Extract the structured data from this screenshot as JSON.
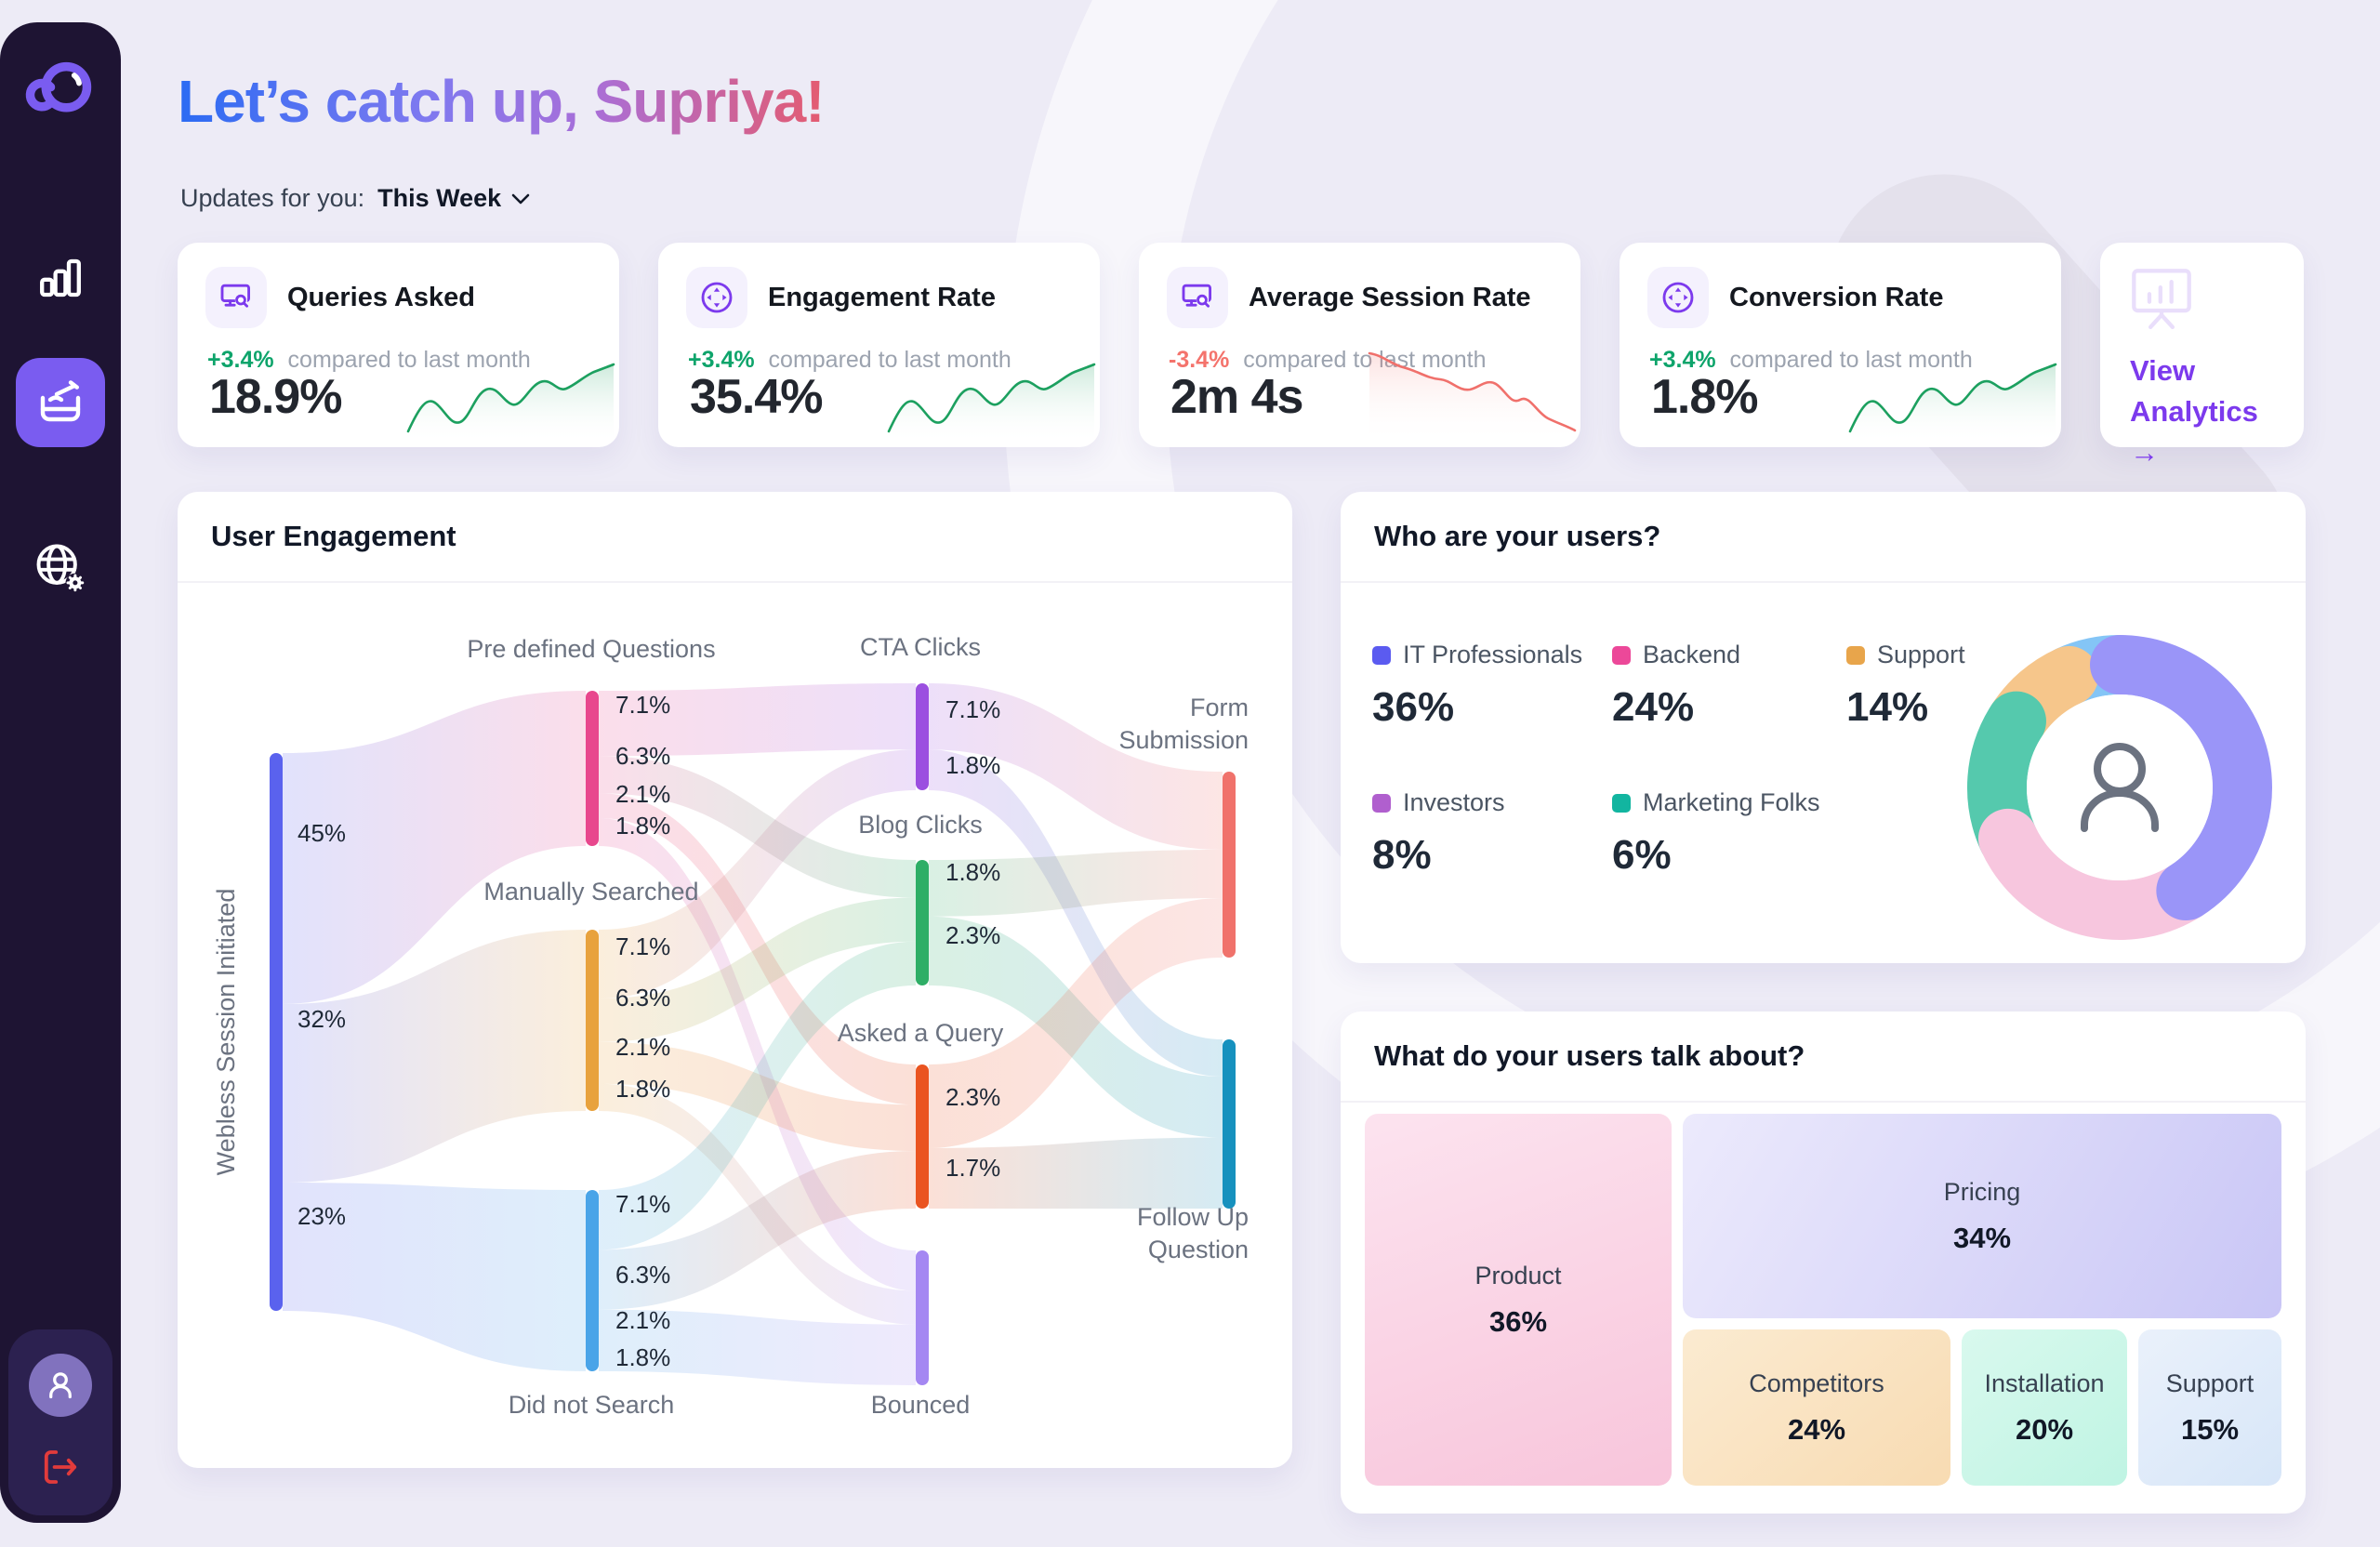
{
  "header": {
    "title": "Let’s catch up, Supriya!",
    "updates_label": "Updates for you:",
    "period": "This Week",
    "period_chevron_icon": "chevron-down-icon"
  },
  "sidebar": {
    "logo_icon": "loop-logo-icon",
    "nav": [
      {
        "icon": "bar-chart-icon",
        "active": false
      },
      {
        "icon": "compose-report-icon",
        "active": true
      },
      {
        "icon": "globe-settings-icon",
        "active": false
      }
    ],
    "avatar_icon": "user-avatar-icon",
    "logout_icon": "logout-icon"
  },
  "stat_cards": [
    {
      "icon": "monitor-search-icon",
      "title": "Queries Asked",
      "delta": "+3.4%",
      "delta_color": "#0EA46B",
      "compare": "compared to last month",
      "value": "18.9%",
      "trend": "up"
    },
    {
      "icon": "target-arrows-icon",
      "title": "Engagement Rate",
      "delta": "+3.4%",
      "delta_color": "#0EA46B",
      "compare": "compared to last month",
      "value": "35.4%",
      "trend": "up"
    },
    {
      "icon": "monitor-search-icon",
      "title": "Average Session Rate",
      "delta": "-3.4%",
      "delta_color": "#F4736C",
      "compare": "compared to last month",
      "value": "2m 4s",
      "trend": "down"
    },
    {
      "icon": "target-arrows-icon",
      "title": "Conversion Rate",
      "delta": "+3.4%",
      "delta_color": "#0EA46B",
      "compare": "compared to last month",
      "value": "1.8%",
      "trend": "up"
    }
  ],
  "view_analytics": {
    "icon": "presentation-chart-icon",
    "label": "View Analytics",
    "arrow": "→"
  },
  "user_engagement": {
    "title": "User Engagement",
    "chart_data": {
      "type": "sankey",
      "nodes": [
        {
          "id": "src",
          "label": "Webless Session Initiated",
          "segments": [
            "45%",
            "32%",
            "23%"
          ],
          "color": "#5A62EE"
        },
        {
          "id": "pre",
          "label": "Pre defined Questions",
          "segments": [
            "7.1%",
            "6.3%",
            "2.1%",
            "1.8%"
          ],
          "color": "#E8478D"
        },
        {
          "id": "man",
          "label": "Manually Searched",
          "segments": [
            "7.1%",
            "6.3%",
            "2.1%",
            "1.8%"
          ],
          "color": "#E8A23D"
        },
        {
          "id": "did",
          "label": "Did not Search",
          "segments": [
            "7.1%",
            "6.3%",
            "2.1%",
            "1.8%"
          ],
          "color": "#4AA4E8"
        },
        {
          "id": "cta",
          "label": "CTA Clicks",
          "segments": [
            "7.1%",
            "1.8%"
          ],
          "color": "#9B4FE0"
        },
        {
          "id": "blog",
          "label": "Blog Clicks",
          "segments": [
            "1.8%",
            "2.3%"
          ],
          "color": "#2EAE66"
        },
        {
          "id": "ask",
          "label": "Asked a Query",
          "segments": [
            "2.3%",
            "1.7%"
          ],
          "color": "#EA5420"
        },
        {
          "id": "bounce",
          "label": "Bounced",
          "segments": [],
          "color": "#A487F2"
        },
        {
          "id": "form",
          "label": "Form Submission",
          "segments": [],
          "color": "#F0726B"
        },
        {
          "id": "follow",
          "label": "Follow Up Question",
          "segments": [],
          "color": "#1691BE"
        }
      ],
      "links": [
        {
          "source": "src",
          "target": "pre",
          "value": 45
        },
        {
          "source": "src",
          "target": "man",
          "value": 32
        },
        {
          "source": "src",
          "target": "did",
          "value": 23
        },
        {
          "source": "pre",
          "target": "cta"
        },
        {
          "source": "pre",
          "target": "blog"
        },
        {
          "source": "pre",
          "target": "ask"
        },
        {
          "source": "pre",
          "target": "bounce"
        },
        {
          "source": "man",
          "target": "cta"
        },
        {
          "source": "man",
          "target": "blog"
        },
        {
          "source": "man",
          "target": "ask"
        },
        {
          "source": "man",
          "target": "bounce"
        },
        {
          "source": "did",
          "target": "blog"
        },
        {
          "source": "did",
          "target": "ask"
        },
        {
          "source": "did",
          "target": "bounce"
        },
        {
          "source": "cta",
          "target": "form"
        },
        {
          "source": "cta",
          "target": "follow"
        },
        {
          "source": "blog",
          "target": "form"
        },
        {
          "source": "blog",
          "target": "follow"
        },
        {
          "source": "ask",
          "target": "form"
        },
        {
          "source": "ask",
          "target": "follow"
        }
      ]
    }
  },
  "users_card": {
    "title": "Who are your users?",
    "legend": [
      {
        "label": "IT Professionals",
        "value": "36%",
        "color": "#5B5BF0"
      },
      {
        "label": "Backend",
        "value": "24%",
        "color": "#EC4899"
      },
      {
        "label": "Support",
        "value": "14%",
        "color": "#E8A54B"
      },
      {
        "label": "Investors",
        "value": "8%",
        "color": "#B05FCE"
      },
      {
        "label": "Marketing Folks",
        "value": "6%",
        "color": "#12B5A0"
      }
    ],
    "chart_data": {
      "type": "pie",
      "center_icon": "person-icon",
      "segments": [
        {
          "value": 36,
          "color": "#9A95F8"
        },
        {
          "value": 24,
          "color": "#F7C6DE"
        },
        {
          "value": 14,
          "color": "#55C9AD"
        },
        {
          "value": 8,
          "color": "#F6C68B"
        },
        {
          "value": 6,
          "color": "#84C5F6"
        }
      ]
    }
  },
  "topics_card": {
    "title": "What do your users talk about?",
    "chart_data": {
      "type": "treemap",
      "blocks": [
        {
          "label": "Product",
          "value": "36%"
        },
        {
          "label": "Pricing",
          "value": "34%"
        },
        {
          "label": "Competitors",
          "value": "24%"
        },
        {
          "label": "Installation",
          "value": "20%"
        },
        {
          "label": "Support",
          "value": "15%"
        }
      ]
    }
  }
}
